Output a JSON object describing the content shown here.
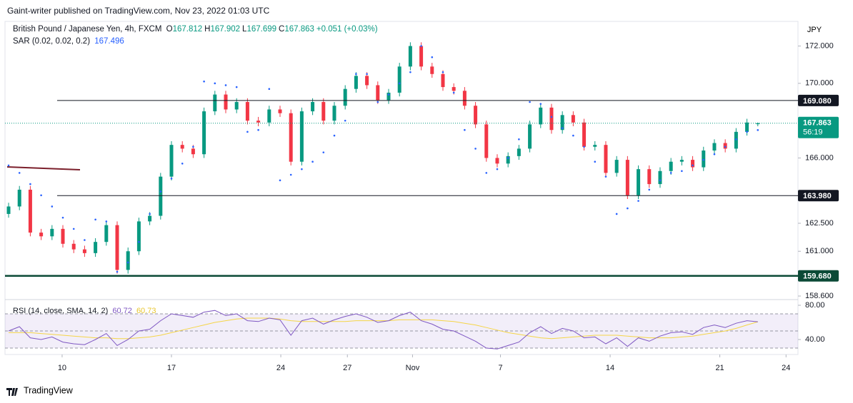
{
  "header": {
    "published": "Gaint-writer published on TradingView.com, Nov 23, 2022 01:03 UTC",
    "footer": "TradingView"
  },
  "chart_data": {
    "type": "candlestick",
    "title": "British Pound / Japanese Yen, 4h, FXCM",
    "ohlc_labels": [
      "O",
      "H",
      "L",
      "C"
    ],
    "change": "+0.051 (+0.03%)",
    "currency": "JPY",
    "up_color": "#089981",
    "down_color": "#f23645",
    "candles": [
      [
        163.0,
        163.6,
        162.8,
        163.4
      ],
      [
        163.4,
        164.5,
        163.2,
        164.3
      ],
      [
        164.3,
        164.5,
        161.8,
        162.0
      ],
      [
        162.0,
        162.2,
        161.6,
        161.8
      ],
      [
        161.8,
        162.4,
        161.6,
        162.2
      ],
      [
        162.2,
        162.4,
        161.2,
        161.4
      ],
      [
        161.4,
        161.6,
        160.9,
        161.1
      ],
      [
        161.1,
        161.3,
        160.7,
        160.9
      ],
      [
        160.9,
        161.7,
        160.7,
        161.5
      ],
      [
        161.5,
        162.6,
        161.3,
        162.4
      ],
      [
        162.4,
        162.6,
        159.8,
        160.0
      ],
      [
        160.0,
        161.2,
        159.8,
        161.0
      ],
      [
        161.0,
        162.8,
        160.8,
        162.6
      ],
      [
        162.6,
        163.1,
        162.4,
        162.9
      ],
      [
        162.9,
        165.2,
        162.7,
        165.0
      ],
      [
        165.0,
        166.9,
        164.8,
        166.7
      ],
      [
        166.7,
        166.9,
        166.3,
        166.5
      ],
      [
        166.5,
        166.7,
        166.0,
        166.2
      ],
      [
        166.2,
        168.7,
        166.0,
        168.5
      ],
      [
        168.5,
        169.6,
        168.3,
        169.4
      ],
      [
        169.4,
        169.6,
        168.4,
        168.6
      ],
      [
        168.6,
        169.2,
        168.4,
        169.0
      ],
      [
        169.0,
        169.2,
        167.8,
        168.0
      ],
      [
        168.0,
        168.2,
        167.7,
        167.9
      ],
      [
        167.9,
        168.8,
        167.7,
        168.6
      ],
      [
        168.6,
        168.8,
        168.2,
        168.4
      ],
      [
        168.4,
        168.6,
        165.6,
        165.8
      ],
      [
        165.8,
        168.7,
        165.6,
        168.5
      ],
      [
        168.5,
        169.2,
        168.3,
        169.0
      ],
      [
        169.0,
        169.2,
        167.8,
        168.0
      ],
      [
        168.0,
        169.0,
        167.8,
        168.8
      ],
      [
        168.8,
        169.9,
        168.6,
        169.7
      ],
      [
        169.7,
        170.6,
        169.5,
        170.4
      ],
      [
        170.4,
        170.6,
        169.7,
        169.9
      ],
      [
        169.9,
        170.1,
        168.9,
        169.1
      ],
      [
        169.1,
        169.7,
        168.9,
        169.5
      ],
      [
        169.5,
        171.1,
        169.3,
        170.9
      ],
      [
        170.9,
        172.2,
        170.7,
        172.0
      ],
      [
        172.0,
        172.2,
        170.7,
        170.9
      ],
      [
        170.9,
        171.1,
        170.3,
        170.5
      ],
      [
        170.5,
        170.7,
        169.6,
        169.8
      ],
      [
        169.8,
        170.0,
        169.4,
        169.6
      ],
      [
        169.6,
        169.8,
        168.6,
        168.8
      ],
      [
        168.8,
        169.0,
        167.6,
        167.8
      ],
      [
        167.8,
        168.0,
        165.8,
        166.0
      ],
      [
        166.0,
        166.2,
        165.5,
        165.7
      ],
      [
        165.7,
        166.3,
        165.5,
        166.1
      ],
      [
        166.1,
        166.7,
        165.9,
        166.5
      ],
      [
        166.5,
        168.0,
        166.3,
        167.8
      ],
      [
        167.8,
        168.9,
        167.6,
        168.7
      ],
      [
        168.7,
        168.9,
        167.3,
        167.5
      ],
      [
        167.5,
        168.5,
        167.3,
        168.3
      ],
      [
        168.3,
        168.5,
        167.7,
        167.9
      ],
      [
        167.9,
        168.1,
        166.4,
        166.6
      ],
      [
        166.6,
        166.9,
        166.4,
        166.7
      ],
      [
        166.7,
        166.9,
        165.0,
        165.2
      ],
      [
        165.2,
        166.1,
        165.0,
        165.9
      ],
      [
        165.9,
        166.1,
        163.8,
        164.0
      ],
      [
        164.0,
        165.6,
        163.8,
        165.4
      ],
      [
        165.4,
        165.6,
        164.4,
        164.6
      ],
      [
        164.6,
        165.5,
        164.4,
        165.3
      ],
      [
        165.3,
        166.0,
        165.1,
        165.8
      ],
      [
        165.8,
        166.1,
        165.6,
        165.9
      ],
      [
        165.9,
        166.1,
        165.3,
        165.5
      ],
      [
        165.5,
        166.6,
        165.3,
        166.4
      ],
      [
        166.4,
        167.0,
        166.2,
        166.8
      ],
      [
        166.8,
        167.0,
        166.3,
        166.5
      ],
      [
        166.5,
        167.6,
        166.3,
        167.4
      ],
      [
        167.4,
        168.1,
        167.2,
        167.9
      ],
      [
        167.812,
        167.902,
        167.699,
        167.863
      ]
    ],
    "xlim": [
      -0.33,
      72.7
    ],
    "xticks": [
      {
        "value": 4.93,
        "label": "10"
      },
      {
        "value": 15,
        "label": "17"
      },
      {
        "value": 25.07,
        "label": "24"
      },
      {
        "value": 31.2,
        "label": "27"
      },
      {
        "value": 37.2,
        "label": "Nov"
      },
      {
        "value": 45.3,
        "label": "7"
      },
      {
        "value": 55.4,
        "label": "14"
      },
      {
        "value": 65.5,
        "label": "21"
      },
      {
        "value": 71.6,
        "label": "24"
      }
    ],
    "ylim": [
      158.41,
      173.32
    ],
    "yticks": [
      {
        "value": 172,
        "label": "172.000"
      },
      {
        "value": 170,
        "label": "170.000"
      },
      {
        "value": 166,
        "label": "166.000"
      },
      {
        "value": 162.5,
        "label": "162.500"
      },
      {
        "value": 161,
        "label": "161.000"
      },
      {
        "value": 158.6,
        "label": "158.600"
      }
    ],
    "levels": [
      {
        "value": 169.08,
        "label": "169.080",
        "color": "#131722",
        "width": 1
      },
      {
        "value": 163.98,
        "label": "163.980",
        "color": "#131722",
        "width": 1
      },
      {
        "value": 159.68,
        "label": "159.680",
        "color": "#0b4a36",
        "width": 2.5
      }
    ],
    "last_price_color": "#089981",
    "countdown": "56:19",
    "sar": {
      "name": "SAR (0.02, 0.02, 0.2)",
      "color": "#2962ff",
      "values": [
        165.6,
        165.2,
        164.6,
        164.0,
        163.4,
        162.8,
        162.2,
        161.6,
        162.7,
        162.6,
        159.9,
        160.4,
        161.5,
        163.0,
        164.2,
        164.9,
        165.7,
        166.6,
        170.1,
        170.0,
        169.9,
        169.8,
        167.4,
        167.5,
        169.7,
        164.8,
        165.1,
        165.4,
        165.8,
        166.3,
        167.2,
        168.0,
        170.5,
        170.5,
        169.0,
        169.4,
        170.0,
        170.6,
        172.0,
        171.4,
        170.6,
        169.5,
        167.5,
        166.5,
        165.2,
        165.4,
        166.0,
        167.0,
        169.0,
        168.9,
        168.2,
        167.6,
        167.2,
        166.6,
        165.8,
        165.0,
        163.0,
        163.3,
        163.7,
        164.3,
        164.8,
        165.2,
        165.3,
        165.6,
        165.9,
        166.2,
        166.6,
        167.0,
        167.4,
        167.496
      ]
    },
    "rsi": {
      "name": "RSI (14, close, SMA, 14, 2)",
      "color": "#7e57c2",
      "sma_color": "#f5d547",
      "ylim": [
        22.5,
        86.67
      ],
      "yticks": [
        {
          "value": 80,
          "label": "80.00"
        },
        {
          "value": 40,
          "label": "40.00"
        }
      ],
      "bands": [
        70,
        50,
        30
      ],
      "values": [
        50,
        55,
        42,
        40,
        43,
        37,
        35,
        34,
        40,
        47,
        33,
        40,
        50,
        52,
        62,
        70,
        68,
        66,
        72,
        74,
        68,
        70,
        62,
        61,
        65,
        63,
        45,
        62,
        65,
        58,
        63,
        67,
        70,
        66,
        60,
        62,
        68,
        72,
        62,
        58,
        52,
        50,
        44,
        38,
        30,
        29,
        33,
        37,
        48,
        55,
        47,
        53,
        50,
        42,
        43,
        35,
        42,
        32,
        42,
        38,
        44,
        48,
        49,
        46,
        54,
        57,
        54,
        59,
        62,
        60.72
      ],
      "sma_values": [
        48,
        48,
        48,
        47,
        46,
        45,
        44,
        43,
        42,
        42,
        41,
        41,
        42,
        43,
        45,
        48,
        51,
        54,
        57,
        60,
        62,
        64,
        65,
        65,
        65,
        64,
        62,
        61,
        61,
        61,
        61,
        61,
        62,
        62,
        62,
        62,
        63,
        63,
        63,
        63,
        62,
        61,
        59,
        57,
        54,
        51,
        48,
        46,
        44,
        42,
        41,
        42,
        43,
        44,
        45,
        45,
        45,
        44,
        43,
        42,
        42,
        42,
        43,
        44,
        46,
        48,
        50,
        53,
        57,
        60.73
      ]
    }
  }
}
